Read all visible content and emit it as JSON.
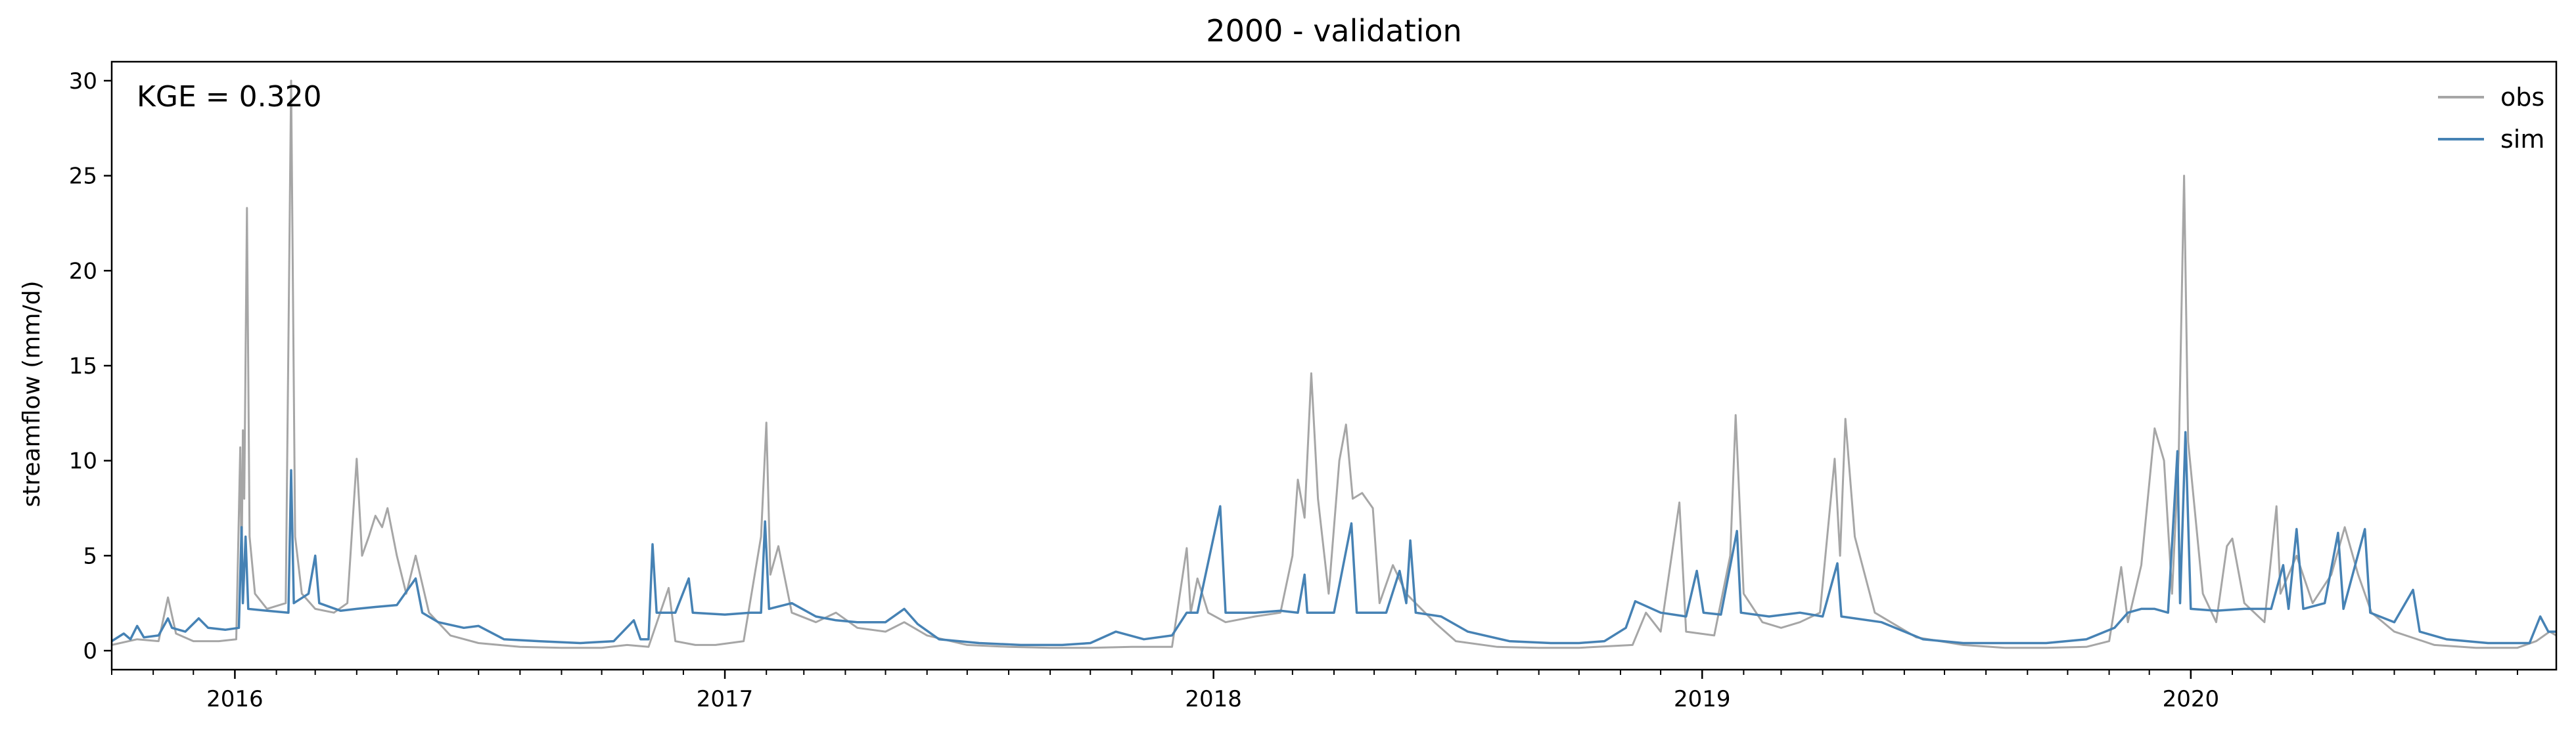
{
  "chart_data": {
    "type": "line",
    "title": "2000 - validation",
    "xlabel": "",
    "ylabel": "streamflow (mm/d)",
    "annotation": "KGE = 0.320",
    "xlim": [
      "2015-10-01",
      "2020-09-30"
    ],
    "ylim": [
      -1,
      31
    ],
    "yticks": [
      0,
      5,
      10,
      15,
      20,
      25,
      30
    ],
    "xticks": [
      {
        "date": "2016-01-01",
        "label": "2016"
      },
      {
        "date": "2017-01-01",
        "label": "2017"
      },
      {
        "date": "2018-01-01",
        "label": "2018"
      },
      {
        "date": "2019-01-01",
        "label": "2019"
      },
      {
        "date": "2020-01-01",
        "label": "2020"
      }
    ],
    "grid": false,
    "legend": "top-right",
    "series": [
      {
        "name": "obs",
        "color": "#a6a6a6",
        "points": [
          [
            "2015-10-01",
            0.3
          ],
          [
            "2015-10-20",
            0.6
          ],
          [
            "2015-11-05",
            0.5
          ],
          [
            "2015-11-12",
            2.8
          ],
          [
            "2015-11-18",
            0.9
          ],
          [
            "2015-12-01",
            0.5
          ],
          [
            "2015-12-20",
            0.5
          ],
          [
            "2016-01-02",
            0.6
          ],
          [
            "2016-01-05",
            10.7
          ],
          [
            "2016-01-06",
            4.0
          ],
          [
            "2016-01-07",
            11.6
          ],
          [
            "2016-01-08",
            8.0
          ],
          [
            "2016-01-10",
            23.3
          ],
          [
            "2016-01-12",
            6.0
          ],
          [
            "2016-01-16",
            3.0
          ],
          [
            "2016-01-25",
            2.2
          ],
          [
            "2016-02-08",
            2.5
          ],
          [
            "2016-02-12",
            30.0
          ],
          [
            "2016-02-15",
            6.0
          ],
          [
            "2016-02-20",
            3.0
          ],
          [
            "2016-03-01",
            2.2
          ],
          [
            "2016-03-15",
            2.0
          ],
          [
            "2016-03-25",
            2.5
          ],
          [
            "2016-04-01",
            10.1
          ],
          [
            "2016-04-05",
            5.0
          ],
          [
            "2016-04-10",
            6.0
          ],
          [
            "2016-04-15",
            7.1
          ],
          [
            "2016-04-20",
            6.5
          ],
          [
            "2016-04-24",
            7.5
          ],
          [
            "2016-05-01",
            5.0
          ],
          [
            "2016-05-08",
            3.0
          ],
          [
            "2016-05-15",
            5.0
          ],
          [
            "2016-05-25",
            2.0
          ],
          [
            "2016-06-10",
            0.8
          ],
          [
            "2016-07-01",
            0.4
          ],
          [
            "2016-08-01",
            0.2
          ],
          [
            "2016-09-01",
            0.15
          ],
          [
            "2016-10-01",
            0.15
          ],
          [
            "2016-10-20",
            0.3
          ],
          [
            "2016-11-05",
            0.2
          ],
          [
            "2016-11-20",
            3.3
          ],
          [
            "2016-11-25",
            0.5
          ],
          [
            "2016-12-10",
            0.3
          ],
          [
            "2016-12-25",
            0.3
          ],
          [
            "2017-01-15",
            0.5
          ],
          [
            "2017-01-28",
            6.0
          ],
          [
            "2017-02-01",
            12.0
          ],
          [
            "2017-02-04",
            4.0
          ],
          [
            "2017-02-10",
            5.5
          ],
          [
            "2017-02-20",
            2.0
          ],
          [
            "2017-03-10",
            1.5
          ],
          [
            "2017-03-25",
            2.0
          ],
          [
            "2017-04-10",
            1.2
          ],
          [
            "2017-05-01",
            1.0
          ],
          [
            "2017-05-15",
            1.5
          ],
          [
            "2017-06-01",
            0.8
          ],
          [
            "2017-07-01",
            0.3
          ],
          [
            "2017-08-01",
            0.2
          ],
          [
            "2017-09-01",
            0.15
          ],
          [
            "2017-10-01",
            0.15
          ],
          [
            "2017-11-01",
            0.2
          ],
          [
            "2017-12-01",
            0.2
          ],
          [
            "2017-12-12",
            5.4
          ],
          [
            "2017-12-15",
            2.0
          ],
          [
            "2017-12-20",
            3.8
          ],
          [
            "2017-12-28",
            2.0
          ],
          [
            "2018-01-10",
            1.5
          ],
          [
            "2018-02-01",
            1.8
          ],
          [
            "2018-02-20",
            2.0
          ],
          [
            "2018-03-01",
            5.0
          ],
          [
            "2018-03-05",
            9.0
          ],
          [
            "2018-03-10",
            7.0
          ],
          [
            "2018-03-15",
            14.6
          ],
          [
            "2018-03-20",
            8.0
          ],
          [
            "2018-03-28",
            3.0
          ],
          [
            "2018-04-05",
            10.0
          ],
          [
            "2018-04-10",
            11.9
          ],
          [
            "2018-04-15",
            8.0
          ],
          [
            "2018-04-22",
            8.3
          ],
          [
            "2018-04-30",
            7.5
          ],
          [
            "2018-05-05",
            2.5
          ],
          [
            "2018-05-15",
            4.5
          ],
          [
            "2018-05-25",
            3.0
          ],
          [
            "2018-06-15",
            1.5
          ],
          [
            "2018-07-01",
            0.5
          ],
          [
            "2018-08-01",
            0.2
          ],
          [
            "2018-09-01",
            0.15
          ],
          [
            "2018-10-01",
            0.15
          ],
          [
            "2018-11-10",
            0.3
          ],
          [
            "2018-11-20",
            2.0
          ],
          [
            "2018-12-01",
            1.0
          ],
          [
            "2018-12-15",
            7.8
          ],
          [
            "2018-12-20",
            1.0
          ],
          [
            "2019-01-10",
            0.8
          ],
          [
            "2019-01-22",
            5.0
          ],
          [
            "2019-01-26",
            12.4
          ],
          [
            "2019-02-01",
            3.0
          ],
          [
            "2019-02-15",
            1.5
          ],
          [
            "2019-03-01",
            1.2
          ],
          [
            "2019-03-15",
            1.5
          ],
          [
            "2019-03-30",
            2.0
          ],
          [
            "2019-04-10",
            10.1
          ],
          [
            "2019-04-14",
            5.0
          ],
          [
            "2019-04-18",
            12.2
          ],
          [
            "2019-04-25",
            6.0
          ],
          [
            "2019-05-10",
            2.0
          ],
          [
            "2019-06-10",
            0.7
          ],
          [
            "2019-07-15",
            0.3
          ],
          [
            "2019-08-15",
            0.15
          ],
          [
            "2019-09-15",
            0.15
          ],
          [
            "2019-10-15",
            0.2
          ],
          [
            "2019-11-01",
            0.5
          ],
          [
            "2019-11-10",
            4.4
          ],
          [
            "2019-11-15",
            1.5
          ],
          [
            "2019-11-25",
            4.5
          ],
          [
            "2019-12-05",
            11.7
          ],
          [
            "2019-12-12",
            10.0
          ],
          [
            "2019-12-18",
            3.0
          ],
          [
            "2019-12-23",
            10.4
          ],
          [
            "2019-12-27",
            25.0
          ],
          [
            "2019-12-30",
            11.0
          ],
          [
            "2020-01-10",
            3.0
          ],
          [
            "2020-01-20",
            1.5
          ],
          [
            "2020-01-28",
            5.5
          ],
          [
            "2020-02-01",
            5.9
          ],
          [
            "2020-02-10",
            2.5
          ],
          [
            "2020-02-25",
            1.5
          ],
          [
            "2020-03-05",
            7.6
          ],
          [
            "2020-03-08",
            3.0
          ],
          [
            "2020-03-20",
            5.0
          ],
          [
            "2020-04-01",
            2.5
          ],
          [
            "2020-04-15",
            4.0
          ],
          [
            "2020-04-25",
            6.5
          ],
          [
            "2020-05-05",
            4.0
          ],
          [
            "2020-05-15",
            2.0
          ],
          [
            "2020-06-01",
            1.0
          ],
          [
            "2020-07-01",
            0.3
          ],
          [
            "2020-08-01",
            0.15
          ],
          [
            "2020-09-01",
            0.15
          ],
          [
            "2020-09-15",
            0.5
          ],
          [
            "2020-09-25",
            1.0
          ],
          [
            "2020-09-30",
            0.8
          ]
        ]
      },
      {
        "name": "sim",
        "color": "#4682b4",
        "points": [
          [
            "2015-10-01",
            0.5
          ],
          [
            "2015-10-10",
            0.9
          ],
          [
            "2015-10-15",
            0.6
          ],
          [
            "2015-10-20",
            1.3
          ],
          [
            "2015-10-25",
            0.7
          ],
          [
            "2015-11-05",
            0.8
          ],
          [
            "2015-11-12",
            1.7
          ],
          [
            "2015-11-15",
            1.2
          ],
          [
            "2015-11-25",
            1.0
          ],
          [
            "2015-12-05",
            1.7
          ],
          [
            "2015-12-12",
            1.2
          ],
          [
            "2015-12-25",
            1.1
          ],
          [
            "2016-01-04",
            1.2
          ],
          [
            "2016-01-06",
            6.5
          ],
          [
            "2016-01-07",
            2.5
          ],
          [
            "2016-01-09",
            6.0
          ],
          [
            "2016-01-11",
            2.2
          ],
          [
            "2016-01-25",
            2.1
          ],
          [
            "2016-02-10",
            2.0
          ],
          [
            "2016-02-12",
            9.5
          ],
          [
            "2016-02-14",
            2.5
          ],
          [
            "2016-02-25",
            3.0
          ],
          [
            "2016-03-01",
            5.0
          ],
          [
            "2016-03-04",
            2.5
          ],
          [
            "2016-03-20",
            2.1
          ],
          [
            "2016-04-01",
            2.2
          ],
          [
            "2016-04-15",
            2.3
          ],
          [
            "2016-05-01",
            2.4
          ],
          [
            "2016-05-15",
            3.8
          ],
          [
            "2016-05-20",
            2.0
          ],
          [
            "2016-06-01",
            1.5
          ],
          [
            "2016-06-20",
            1.2
          ],
          [
            "2016-07-01",
            1.3
          ],
          [
            "2016-07-20",
            0.6
          ],
          [
            "2016-08-15",
            0.5
          ],
          [
            "2016-09-15",
            0.4
          ],
          [
            "2016-10-10",
            0.5
          ],
          [
            "2016-10-25",
            1.6
          ],
          [
            "2016-10-30",
            0.6
          ],
          [
            "2016-11-05",
            0.6
          ],
          [
            "2016-11-08",
            5.6
          ],
          [
            "2016-11-11",
            2.0
          ],
          [
            "2016-11-25",
            2.0
          ],
          [
            "2016-12-05",
            3.8
          ],
          [
            "2016-12-08",
            2.0
          ],
          [
            "2017-01-01",
            1.9
          ],
          [
            "2017-01-20",
            2.0
          ],
          [
            "2017-01-28",
            2.0
          ],
          [
            "2017-01-31",
            6.8
          ],
          [
            "2017-02-03",
            2.2
          ],
          [
            "2017-02-20",
            2.5
          ],
          [
            "2017-03-10",
            1.8
          ],
          [
            "2017-03-25",
            1.6
          ],
          [
            "2017-04-10",
            1.5
          ],
          [
            "2017-05-01",
            1.5
          ],
          [
            "2017-05-15",
            2.2
          ],
          [
            "2017-05-25",
            1.4
          ],
          [
            "2017-06-10",
            0.6
          ],
          [
            "2017-07-10",
            0.4
          ],
          [
            "2017-08-10",
            0.3
          ],
          [
            "2017-09-10",
            0.3
          ],
          [
            "2017-10-01",
            0.4
          ],
          [
            "2017-10-20",
            1.0
          ],
          [
            "2017-11-10",
            0.6
          ],
          [
            "2017-12-01",
            0.8
          ],
          [
            "2017-12-12",
            2.0
          ],
          [
            "2017-12-20",
            2.0
          ],
          [
            "2018-01-06",
            7.6
          ],
          [
            "2018-01-10",
            2.0
          ],
          [
            "2018-02-01",
            2.0
          ],
          [
            "2018-02-20",
            2.1
          ],
          [
            "2018-03-05",
            2.0
          ],
          [
            "2018-03-10",
            4.0
          ],
          [
            "2018-03-12",
            2.0
          ],
          [
            "2018-04-01",
            2.0
          ],
          [
            "2018-04-14",
            6.7
          ],
          [
            "2018-04-18",
            2.0
          ],
          [
            "2018-05-10",
            2.0
          ],
          [
            "2018-05-20",
            4.2
          ],
          [
            "2018-05-25",
            2.5
          ],
          [
            "2018-05-28",
            5.8
          ],
          [
            "2018-06-01",
            2.0
          ],
          [
            "2018-06-20",
            1.8
          ],
          [
            "2018-07-10",
            1.0
          ],
          [
            "2018-08-10",
            0.5
          ],
          [
            "2018-09-10",
            0.4
          ],
          [
            "2018-10-01",
            0.4
          ],
          [
            "2018-10-20",
            0.5
          ],
          [
            "2018-11-05",
            1.2
          ],
          [
            "2018-11-12",
            2.6
          ],
          [
            "2018-12-01",
            2.0
          ],
          [
            "2018-12-20",
            1.8
          ],
          [
            "2018-12-28",
            4.2
          ],
          [
            "2019-01-02",
            2.0
          ],
          [
            "2019-01-15",
            1.9
          ],
          [
            "2019-01-27",
            6.3
          ],
          [
            "2019-01-30",
            2.0
          ],
          [
            "2019-02-20",
            1.8
          ],
          [
            "2019-03-15",
            2.0
          ],
          [
            "2019-04-01",
            1.8
          ],
          [
            "2019-04-12",
            4.6
          ],
          [
            "2019-04-15",
            1.8
          ],
          [
            "2019-05-15",
            1.5
          ],
          [
            "2019-06-15",
            0.6
          ],
          [
            "2019-07-15",
            0.4
          ],
          [
            "2019-08-15",
            0.4
          ],
          [
            "2019-09-15",
            0.4
          ],
          [
            "2019-10-15",
            0.6
          ],
          [
            "2019-11-05",
            1.2
          ],
          [
            "2019-11-15",
            2.0
          ],
          [
            "2019-11-25",
            2.2
          ],
          [
            "2019-12-05",
            2.2
          ],
          [
            "2019-12-15",
            2.0
          ],
          [
            "2019-12-22",
            10.5
          ],
          [
            "2019-12-24",
            2.5
          ],
          [
            "2019-12-28",
            11.5
          ],
          [
            "2020-01-01",
            2.2
          ],
          [
            "2020-01-20",
            2.1
          ],
          [
            "2020-02-10",
            2.2
          ],
          [
            "2020-03-01",
            2.2
          ],
          [
            "2020-03-10",
            4.5
          ],
          [
            "2020-03-14",
            2.2
          ],
          [
            "2020-03-20",
            6.4
          ],
          [
            "2020-03-25",
            2.2
          ],
          [
            "2020-04-10",
            2.5
          ],
          [
            "2020-04-20",
            6.2
          ],
          [
            "2020-04-24",
            2.2
          ],
          [
            "2020-05-10",
            6.4
          ],
          [
            "2020-05-14",
            2.0
          ],
          [
            "2020-06-01",
            1.5
          ],
          [
            "2020-06-15",
            3.2
          ],
          [
            "2020-06-20",
            1.0
          ],
          [
            "2020-07-10",
            0.6
          ],
          [
            "2020-08-10",
            0.4
          ],
          [
            "2020-09-10",
            0.4
          ],
          [
            "2020-09-18",
            1.8
          ],
          [
            "2020-09-24",
            1.0
          ],
          [
            "2020-09-30",
            1.0
          ]
        ]
      }
    ]
  }
}
